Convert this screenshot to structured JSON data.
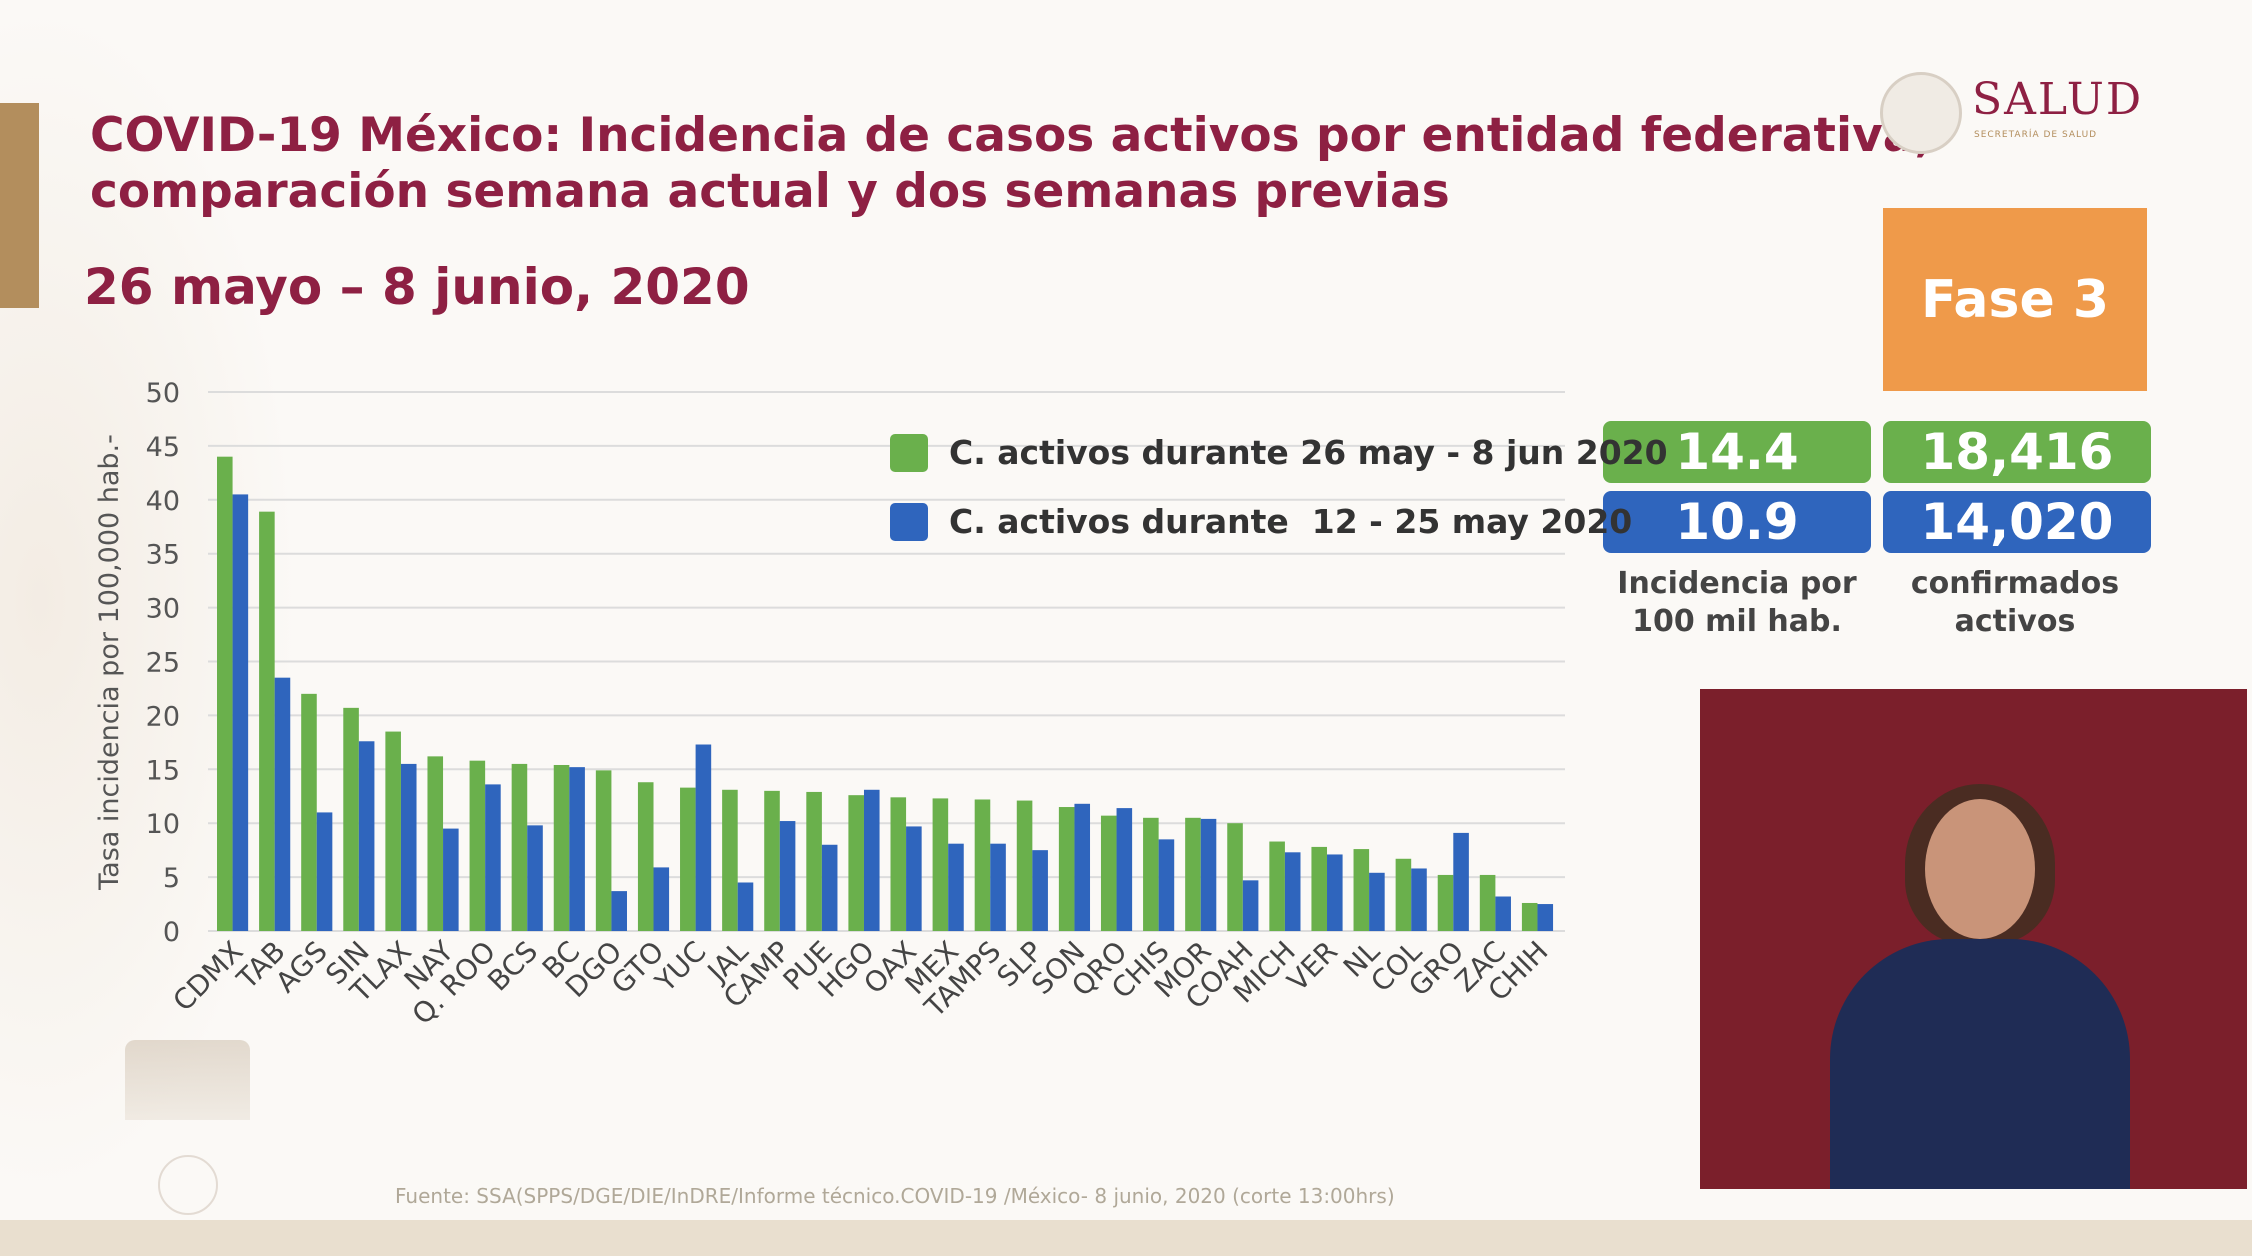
{
  "header": {
    "title_line1": "COVID-19 México: Incidencia de casos activos por entidad federativa,",
    "title_line2": "comparación semana actual y dos semanas previas",
    "date_range": "26 mayo – 8 junio, 2020",
    "logo_text": "SALUD",
    "logo_subtext": "SECRETARÍA DE SALUD"
  },
  "phase": {
    "label": "Fase 3",
    "color": "#ef9a4a"
  },
  "stats": {
    "current_incidence": "14.4",
    "current_confirmed": "18,416",
    "previous_incidence": "10.9",
    "previous_confirmed": "14,020",
    "incidence_label": "Incidencia por 100 mil hab.",
    "confirmed_label": "confirmados activos"
  },
  "colors": {
    "current": "#6ab04c",
    "previous": "#2f65bd",
    "title": "#8e2043"
  },
  "footer": {
    "source": "Fuente: SSA(SPPS/DGE/DIE/InDRE/Informe técnico.COVID-19 /México- 8 junio, 2020 (corte 13:00hrs)"
  },
  "chart_data": {
    "type": "bar",
    "ylabel": "Tasa incidencia por 100,000 hab.-",
    "ylim": [
      0,
      50
    ],
    "yticks": [
      0,
      5,
      10,
      15,
      20,
      25,
      30,
      35,
      40,
      45,
      50
    ],
    "grid": true,
    "legend_position": "top-right",
    "categories": [
      "CDMX",
      "TAB",
      "AGS",
      "SIN",
      "TLAX",
      "NAY",
      "Q. ROO",
      "BCS",
      "BC",
      "DGO",
      "GTO",
      "YUC",
      "JAL",
      "CAMP",
      "PUE",
      "HGO",
      "OAX",
      "MEX",
      "TAMPS",
      "SLP",
      "SON",
      "QRO",
      "CHIS",
      "MOR",
      "COAH",
      "MICH",
      "VER",
      "NL",
      "COL",
      "GRO",
      "ZAC",
      "CHIH"
    ],
    "series": [
      {
        "name": "C. activos durante 26 may - 8 jun 2020",
        "color": "#6ab04c",
        "values": [
          44.0,
          38.9,
          22.0,
          20.7,
          18.5,
          16.2,
          15.8,
          15.5,
          15.4,
          14.9,
          13.8,
          13.3,
          13.1,
          13.0,
          12.9,
          12.6,
          12.4,
          12.3,
          12.2,
          12.1,
          11.5,
          10.7,
          10.5,
          10.5,
          10.0,
          8.3,
          7.8,
          7.6,
          6.7,
          5.2,
          5.2,
          2.6
        ]
      },
      {
        "name": "C. activos durante  12 - 25 may 2020",
        "color": "#2f65bd",
        "values": [
          40.5,
          23.5,
          11.0,
          17.6,
          15.5,
          9.5,
          13.6,
          9.8,
          15.2,
          3.7,
          5.9,
          17.3,
          4.5,
          10.2,
          8.0,
          13.1,
          9.7,
          8.1,
          8.1,
          7.5,
          11.8,
          11.4,
          8.5,
          10.4,
          4.7,
          7.3,
          7.1,
          5.4,
          5.8,
          9.1,
          3.2,
          2.5
        ]
      }
    ]
  }
}
